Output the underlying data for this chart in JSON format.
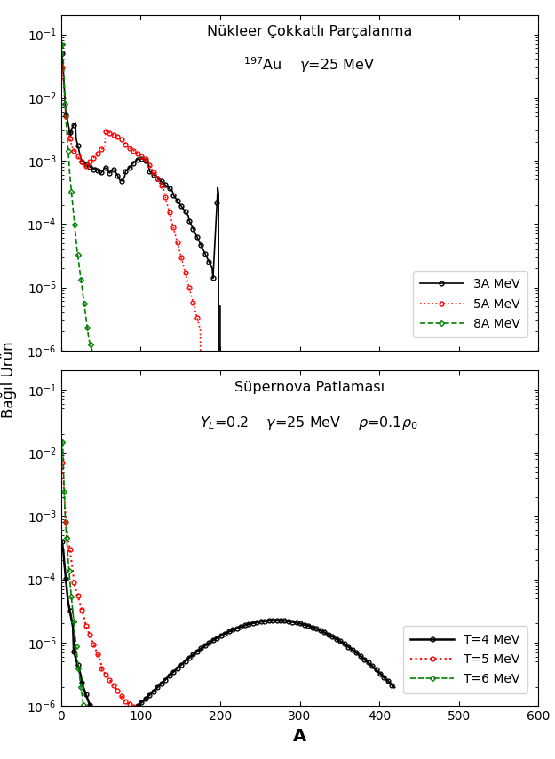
{
  "fig_width": 6.25,
  "fig_height": 8.55,
  "dpi": 100,
  "background_color": "#ffffff",
  "ylabel": "Bağıl Ürün",
  "xlabel": "A",
  "xlabel_fontsize": 14,
  "xlabel_fontweight": "bold",
  "ylabel_fontsize": 12,
  "top_panel": {
    "title_line1": "Nükleer Çokkatlı Parçalanma",
    "title_line2": "$^{197}$Au    $\\gamma$=25 MeV",
    "title_fontsize": 11.5,
    "ylim": [
      1e-06,
      0.2
    ],
    "xlim": [
      0,
      600
    ]
  },
  "bottom_panel": {
    "title_line1": "Süpernova Patlaması",
    "title_line2": "$Y_L$=0.2    $\\gamma$=25 MeV    $\\rho$=0.1$\\rho_0$",
    "title_fontsize": 11.5,
    "ylim": [
      1e-06,
      0.2
    ],
    "xlim": [
      0,
      600
    ]
  }
}
